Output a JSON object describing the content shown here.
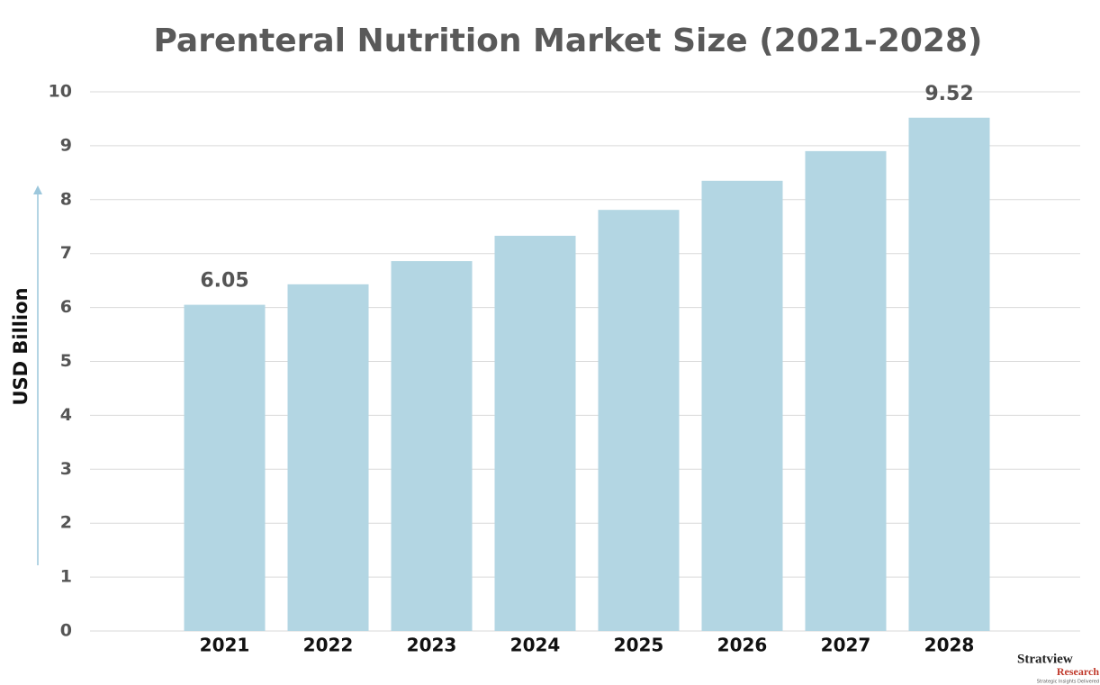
{
  "chart_data": {
    "type": "bar",
    "title": "Parenteral Nutrition Market Size (2021-2028)",
    "y_label": "USD Billion",
    "categories": [
      "2021",
      "2022",
      "2023",
      "2024",
      "2025",
      "2026",
      "2027",
      "2028"
    ],
    "values": [
      6.05,
      6.43,
      6.86,
      7.33,
      7.81,
      8.35,
      8.9,
      9.52
    ],
    "color": "#b3d6e3",
    "data_labels": "ends",
    "ylim": [
      0,
      10
    ],
    "yticks": [
      0,
      1,
      2,
      3,
      4,
      5,
      6,
      7,
      8,
      9,
      10
    ],
    "grid": true
  },
  "logo": {
    "name": "Stratview",
    "sub": "Research",
    "tagline": "Strategic Insights Delivered"
  }
}
